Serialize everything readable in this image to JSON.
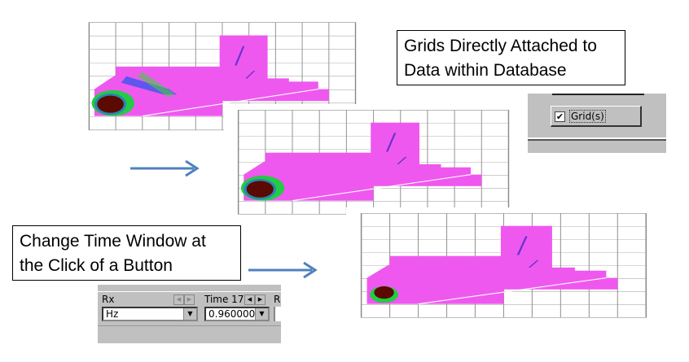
{
  "callouts": {
    "grids": "Grids Directly Attached to Data within Database",
    "time_window": "Change Time Window at the Click of a Button"
  },
  "grid_panel": {
    "checkbox_label": "Grid(s)",
    "checked": true
  },
  "rx_panel": {
    "rx_label": "Rx",
    "rx_value": "Hz",
    "time_label": "Time 17",
    "time_value": "0.960000",
    "next_label_partial": "R"
  },
  "colors": {
    "arrow": "#4f81bd",
    "grid_magenta": "#ee44ee",
    "panel_gray": "#c0c0c0"
  }
}
